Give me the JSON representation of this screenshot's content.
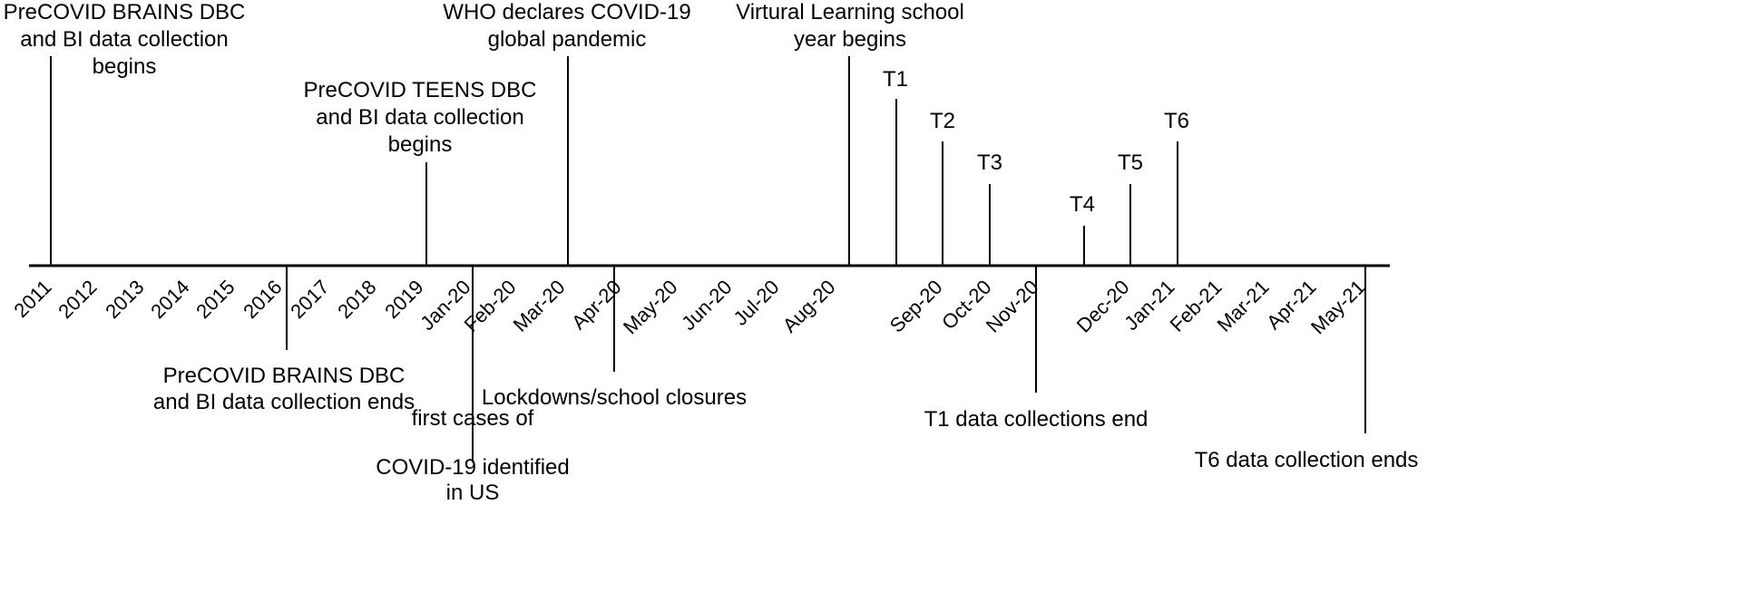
{
  "axis_ticks": [
    "2011",
    "2012",
    "2013",
    "2014",
    "2015",
    "2016",
    "2017",
    "2018",
    "2019",
    "Jan-20",
    "Feb-20",
    "Mar-20",
    "Apr-20",
    "May-20",
    "Jun-20",
    "Jul-20",
    "Aug-20",
    "Sep-20",
    "Oct-20",
    "Nov-20",
    "Dec-20",
    "Jan-21",
    "Feb-21",
    "Mar-21",
    "Apr-21",
    "May-21"
  ],
  "events_above": [
    {
      "id": "brains-begin",
      "lines": [
        "PreCOVID BRAINS DBC",
        "and BI data collection",
        "begins"
      ]
    },
    {
      "id": "teens-begin",
      "lines": [
        "PreCOVID TEENS DBC",
        "and BI data collection",
        "begins"
      ]
    },
    {
      "id": "who-pandemic",
      "lines": [
        "WHO declares COVID-19",
        "global pandemic"
      ]
    },
    {
      "id": "virtual-learning",
      "lines": [
        "Virtural Learning school",
        "year begins"
      ]
    },
    {
      "id": "t1",
      "lines": [
        "T1"
      ]
    },
    {
      "id": "t2",
      "lines": [
        "T2"
      ]
    },
    {
      "id": "t3",
      "lines": [
        "T3"
      ]
    },
    {
      "id": "t4",
      "lines": [
        "T4"
      ]
    },
    {
      "id": "t5",
      "lines": [
        "T5"
      ]
    },
    {
      "id": "t6",
      "lines": [
        "T6"
      ]
    }
  ],
  "events_below": [
    {
      "id": "brains-end",
      "lines": [
        "PreCOVID BRAINS DBC",
        "and BI data collection ends"
      ]
    },
    {
      "id": "first-cases",
      "lines": [
        "first cases of",
        "COVID-19  identified",
        "in US"
      ]
    },
    {
      "id": "lockdowns",
      "lines": [
        "Lockdowns/school closures"
      ]
    },
    {
      "id": "t1-end",
      "lines": [
        "T1 data collections end"
      ]
    },
    {
      "id": "t6-end",
      "lines": [
        "T6 data collection ends"
      ]
    }
  ]
}
